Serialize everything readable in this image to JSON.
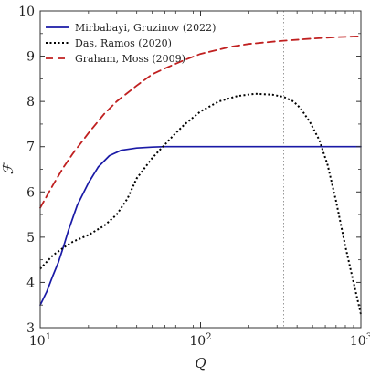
{
  "chart_data": {
    "type": "line",
    "xlabel": "Q",
    "ylabel": "ℱ",
    "x_scale": "log",
    "xlim": [
      10,
      1000
    ],
    "ylim": [
      3,
      10
    ],
    "x_ticks": [
      {
        "value": 10,
        "base": "10",
        "exp": "1"
      },
      {
        "value": 100,
        "base": "10",
        "exp": "2"
      },
      {
        "value": 1000,
        "base": "10",
        "exp": "3"
      }
    ],
    "y_ticks": [
      3,
      4,
      5,
      6,
      7,
      8,
      9,
      10
    ],
    "legend_position": "top-left",
    "reference_line": {
      "x": 330,
      "style": "dotted",
      "color": "#999999"
    },
    "series": [
      {
        "name": "Mirbabayi, Gruzinov (2022)",
        "color": "#1a1aa6",
        "style": "solid",
        "points": [
          [
            10,
            3.5
          ],
          [
            11,
            3.8
          ],
          [
            12,
            4.15
          ],
          [
            13,
            4.45
          ],
          [
            14,
            4.8
          ],
          [
            15,
            5.15
          ],
          [
            17,
            5.7
          ],
          [
            20,
            6.2
          ],
          [
            23,
            6.55
          ],
          [
            27,
            6.8
          ],
          [
            32,
            6.92
          ],
          [
            40,
            6.97
          ],
          [
            50,
            6.99
          ],
          [
            60,
            7.0
          ],
          [
            100,
            7.0
          ],
          [
            200,
            7.0
          ],
          [
            500,
            7.0
          ],
          [
            1000,
            7.0
          ]
        ]
      },
      {
        "name": "Das, Ramos (2020)",
        "color": "#000000",
        "style": "dotted",
        "points": [
          [
            10,
            4.3
          ],
          [
            12,
            4.6
          ],
          [
            14,
            4.77
          ],
          [
            16,
            4.9
          ],
          [
            20,
            5.05
          ],
          [
            25,
            5.25
          ],
          [
            30,
            5.5
          ],
          [
            35,
            5.85
          ],
          [
            40,
            6.3
          ],
          [
            50,
            6.75
          ],
          [
            60,
            7.05
          ],
          [
            70,
            7.3
          ],
          [
            80,
            7.5
          ],
          [
            100,
            7.78
          ],
          [
            130,
            8.0
          ],
          [
            170,
            8.12
          ],
          [
            220,
            8.17
          ],
          [
            280,
            8.15
          ],
          [
            330,
            8.1
          ],
          [
            380,
            8.0
          ],
          [
            420,
            7.85
          ],
          [
            480,
            7.55
          ],
          [
            550,
            7.15
          ],
          [
            620,
            6.6
          ],
          [
            700,
            5.8
          ],
          [
            800,
            4.8
          ],
          [
            900,
            4.0
          ],
          [
            1000,
            3.3
          ]
        ]
      },
      {
        "name": "Graham, Moss (2009)",
        "color": "#c02020",
        "style": "dashed",
        "points": [
          [
            10,
            5.65
          ],
          [
            12,
            6.15
          ],
          [
            14,
            6.55
          ],
          [
            16,
            6.85
          ],
          [
            20,
            7.3
          ],
          [
            25,
            7.72
          ],
          [
            30,
            8.0
          ],
          [
            40,
            8.35
          ],
          [
            50,
            8.6
          ],
          [
            60,
            8.73
          ],
          [
            80,
            8.92
          ],
          [
            100,
            9.05
          ],
          [
            150,
            9.2
          ],
          [
            200,
            9.27
          ],
          [
            300,
            9.33
          ],
          [
            500,
            9.39
          ],
          [
            700,
            9.42
          ],
          [
            1000,
            9.44
          ]
        ]
      }
    ]
  }
}
